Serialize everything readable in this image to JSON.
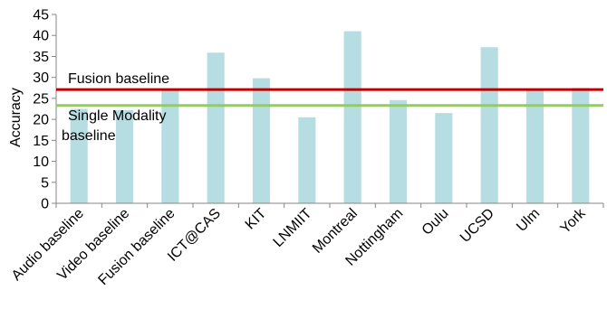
{
  "chart_data": {
    "type": "bar",
    "title": "",
    "xlabel": "",
    "ylabel": "Accuracy",
    "ylim": [
      0,
      45
    ],
    "yticks": [
      0,
      5,
      10,
      15,
      20,
      25,
      30,
      35,
      40,
      45
    ],
    "grid": false,
    "legend": "none",
    "categories": [
      "Audio baseline",
      "Video baseline",
      "Fusion baseline",
      "ICT@CAS",
      "KIT",
      "LNMIIT",
      "Montreal",
      "Nottingham",
      "Oulu",
      "UCSD",
      "Ulm",
      "York"
    ],
    "values": [
      22.5,
      22.2,
      27.1,
      35.9,
      29.8,
      20.5,
      41.0,
      24.6,
      21.5,
      37.2,
      27.0,
      27.5
    ],
    "bar_color": "#b6dde1",
    "reference_lines": [
      {
        "label": "Fusion baseline",
        "value": 27.1,
        "color": "#c00000"
      },
      {
        "label_lines": [
          "Single Modality",
          "baseline"
        ],
        "value": 23.3,
        "color": "#92d050"
      }
    ]
  }
}
